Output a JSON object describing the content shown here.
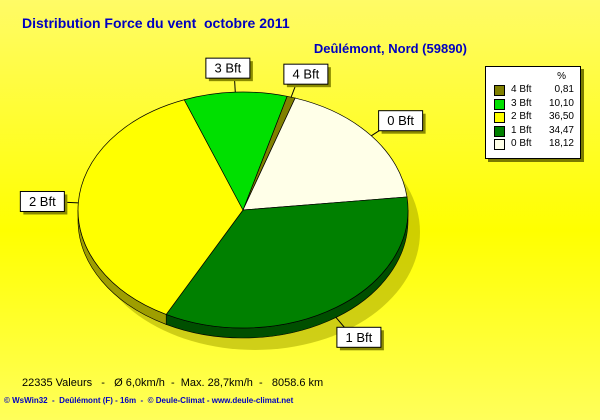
{
  "chart_data": {
    "type": "pie",
    "title": "Distribution Force du vent  octobre 2011",
    "subtitle": "Deûlémont, Nord (59890)",
    "legend_unit": "%",
    "legend_position": "right",
    "slices": [
      {
        "label": "4 Bft",
        "value": 0.81,
        "color": "#808000"
      },
      {
        "label": "0 Bft",
        "value": 18.12,
        "color": "#ffffe8"
      },
      {
        "label": "1 Bft",
        "value": 34.47,
        "color": "#008000"
      },
      {
        "label": "2 Bft",
        "value": 36.5,
        "color": "#ffff00"
      },
      {
        "label": "3 Bft",
        "value": 10.1,
        "color": "#00e000"
      }
    ],
    "legend_order": [
      0,
      4,
      3,
      2,
      1
    ],
    "value_labels": [
      "0,81",
      "18,12",
      "34,47",
      "36,50",
      "10,10"
    ]
  },
  "footer": {
    "stats": "22335 Valeurs   -   Ø 6,0km/h  -  Max. 28,7km/h  -   8058.6 km",
    "credits": "© WsWin32  -  Deûlémont (F) - 16m  -  © Deule-Climat - www.deule-climat.net"
  }
}
